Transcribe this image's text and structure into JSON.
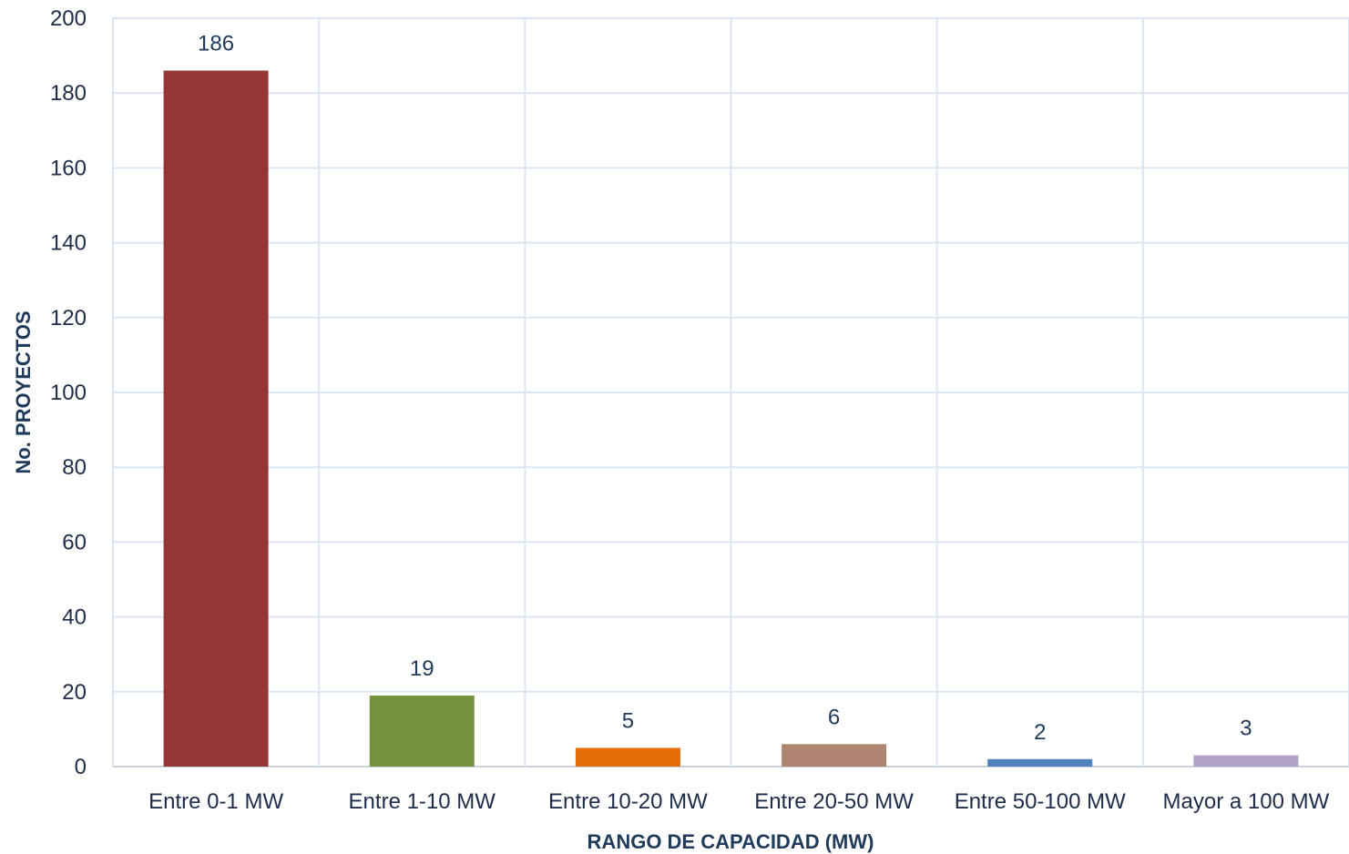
{
  "chart_data": {
    "type": "bar",
    "categories": [
      "Entre 0-1 MW",
      "Entre 1-10 MW",
      "Entre 10-20 MW",
      "Entre 20-50 MW",
      "Entre 50-100 MW",
      "Mayor a 100 MW"
    ],
    "values": [
      186,
      19,
      5,
      6,
      2,
      3
    ],
    "data_labels": [
      "186",
      "19",
      "5",
      "6",
      "2",
      "3"
    ],
    "colors": [
      "#943634",
      "#76923c",
      "#e36c09",
      "#ae8570",
      "#4f81bd",
      "#b2a1c7"
    ],
    "xlabel": "RANGO DE CAPACIDAD (MW)",
    "ylabel": "No. PROYECTOS",
    "ylim": [
      0,
      200
    ],
    "yticks": [
      "0",
      "20",
      "40",
      "60",
      "80",
      "100",
      "120",
      "140",
      "160",
      "180",
      "200"
    ],
    "grid": true,
    "legend": "none"
  }
}
